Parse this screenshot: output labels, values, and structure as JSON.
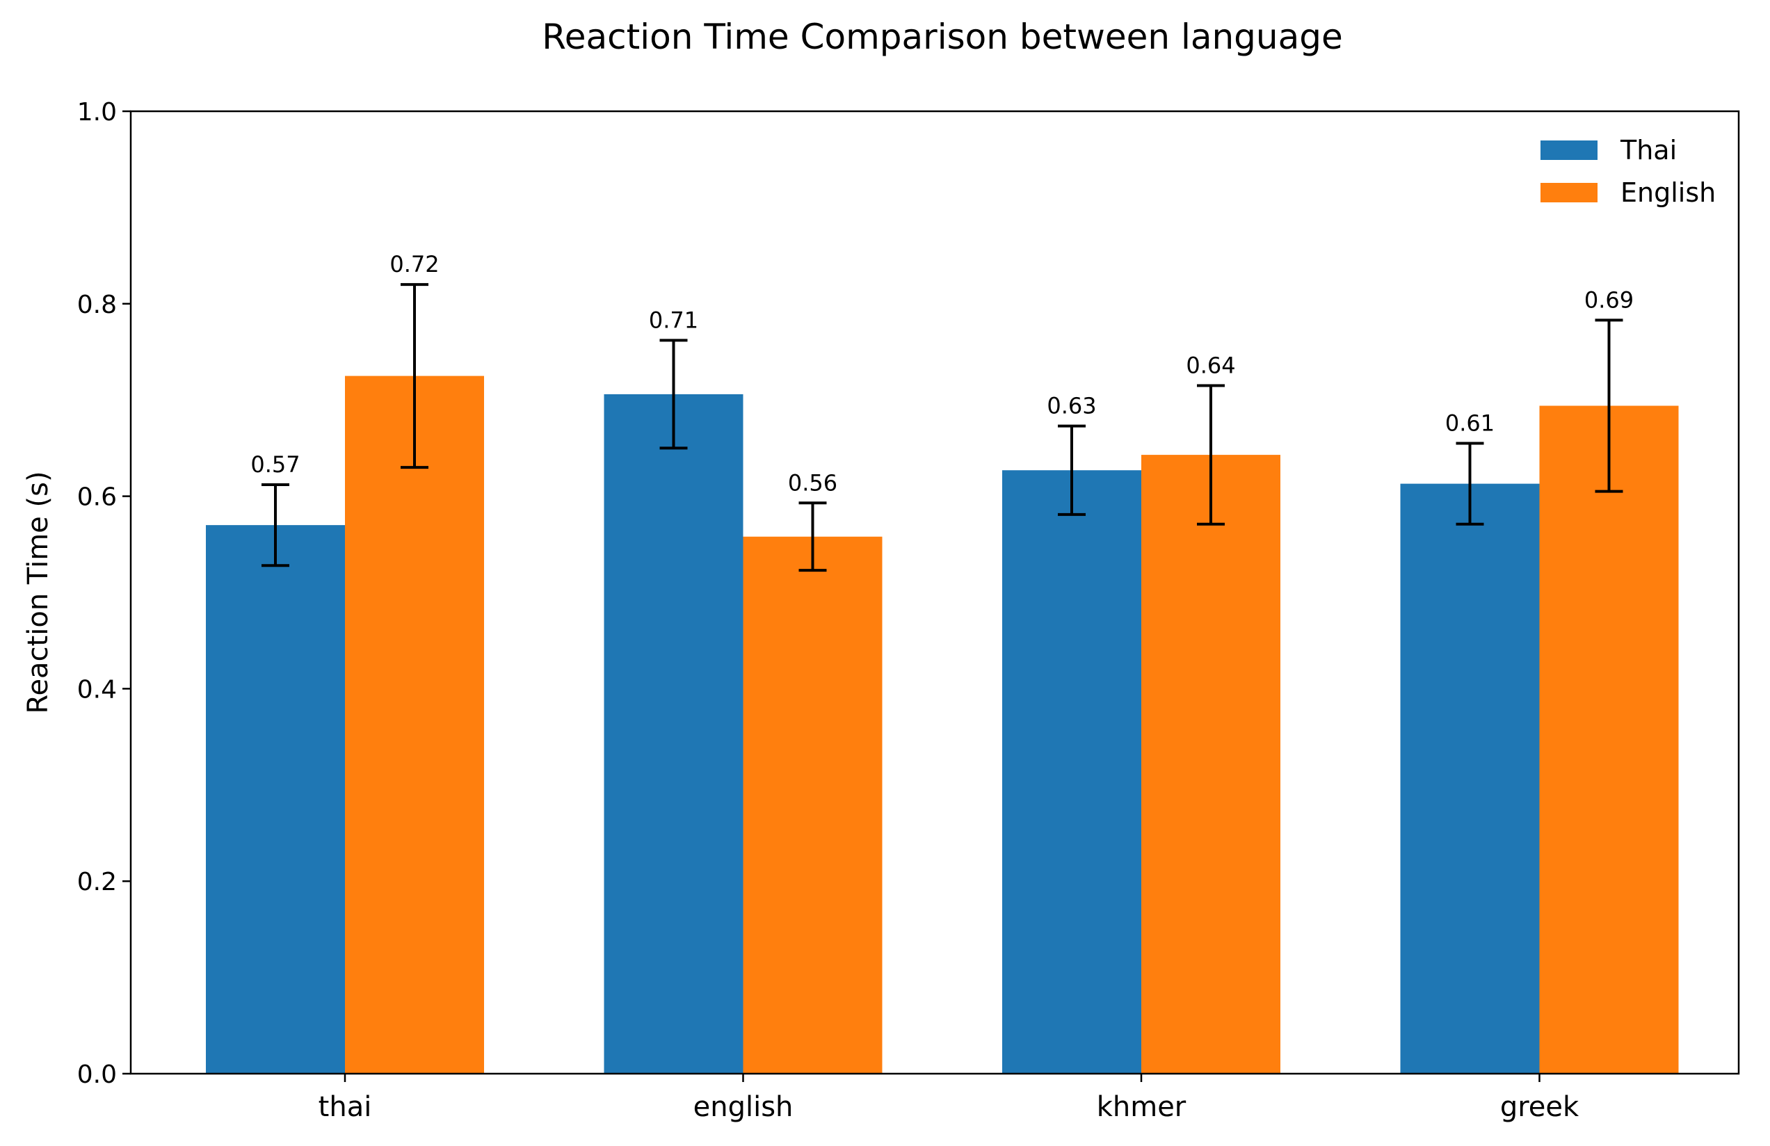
{
  "chart_data": {
    "type": "bar",
    "title": "Reaction Time Comparison between language",
    "xlabel": "",
    "ylabel": "Reaction Time (s)",
    "ylim": [
      0,
      1.0
    ],
    "yticks": [
      "0.0",
      "0.2",
      "0.4",
      "0.6",
      "0.8",
      "1.0"
    ],
    "categories": [
      "thai",
      "english",
      "khmer",
      "greek"
    ],
    "series": [
      {
        "name": "Thai",
        "color": "#1f77b4",
        "values": [
          0.57,
          0.706,
          0.627,
          0.613
        ],
        "error": [
          0.042,
          0.056,
          0.046,
          0.042
        ],
        "labels": [
          "0.57",
          "0.71",
          "0.63",
          "0.61"
        ]
      },
      {
        "name": "English",
        "color": "#ff7f0e",
        "values": [
          0.725,
          0.558,
          0.643,
          0.694
        ],
        "error": [
          0.095,
          0.035,
          0.072,
          0.089
        ],
        "labels": [
          "0.72",
          "0.56",
          "0.64",
          "0.69"
        ]
      }
    ],
    "legend": "top-right",
    "grid": false
  }
}
